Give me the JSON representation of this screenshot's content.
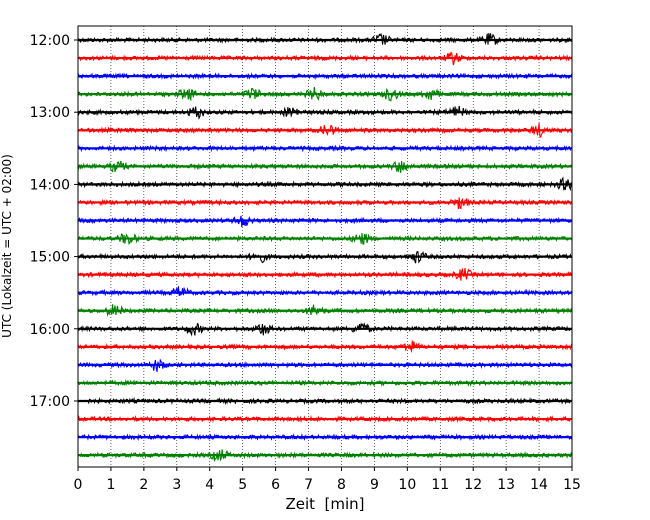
{
  "chart_data": {
    "type": "line",
    "title": "",
    "xlabel": "Zeit  [min]",
    "ylabel": "UTC (Lokalzeit = UTC + 02:00)",
    "xlim": [
      0,
      15
    ],
    "x_ticks": [
      "0",
      "1",
      "2",
      "3",
      "4",
      "5",
      "6",
      "7",
      "8",
      "9",
      "10",
      "11",
      "12",
      "13",
      "14",
      "15"
    ],
    "y_ticks": [
      "12:00",
      "13:00",
      "14:00",
      "15:00",
      "16:00",
      "17:00"
    ],
    "grid": "vertical dotted",
    "trace_interval_min": 15,
    "trace_colors": [
      "#000000",
      "#ff0000",
      "#0000ff",
      "#008000"
    ],
    "traces": [
      {
        "start": "12:00",
        "color": "#000000",
        "events": [
          9.2,
          12.5
        ]
      },
      {
        "start": "12:15",
        "color": "#ff0000",
        "events": [
          11.4
        ]
      },
      {
        "start": "12:30",
        "color": "#0000ff",
        "events": []
      },
      {
        "start": "12:45",
        "color": "#008000",
        "events": [
          3.3,
          5.3,
          7.2,
          9.5,
          10.7
        ]
      },
      {
        "start": "13:00",
        "color": "#000000",
        "events": [
          3.6,
          6.5,
          11.5
        ]
      },
      {
        "start": "13:15",
        "color": "#ff0000",
        "events": [
          7.6,
          14.0
        ]
      },
      {
        "start": "13:30",
        "color": "#0000ff",
        "events": []
      },
      {
        "start": "13:45",
        "color": "#008000",
        "events": [
          1.2,
          9.8
        ]
      },
      {
        "start": "14:00",
        "color": "#000000",
        "events": [
          14.8
        ]
      },
      {
        "start": "14:15",
        "color": "#ff0000",
        "events": [
          11.6
        ]
      },
      {
        "start": "14:30",
        "color": "#0000ff",
        "events": [
          5.0
        ]
      },
      {
        "start": "14:45",
        "color": "#008000",
        "events": [
          1.5,
          8.6
        ]
      },
      {
        "start": "15:00",
        "color": "#000000",
        "events": [
          5.5,
          10.3
        ]
      },
      {
        "start": "15:15",
        "color": "#ff0000",
        "events": [
          11.7
        ]
      },
      {
        "start": "15:30",
        "color": "#0000ff",
        "events": [
          3.1
        ]
      },
      {
        "start": "15:45",
        "color": "#008000",
        "events": [
          1.1,
          7.2
        ]
      },
      {
        "start": "16:00",
        "color": "#000000",
        "events": [
          3.5,
          5.6,
          8.6
        ]
      },
      {
        "start": "16:15",
        "color": "#ff0000",
        "events": [
          10.1
        ]
      },
      {
        "start": "16:30",
        "color": "#0000ff",
        "events": [
          2.4
        ]
      },
      {
        "start": "16:45",
        "color": "#008000",
        "events": []
      },
      {
        "start": "17:00",
        "color": "#000000",
        "events": []
      },
      {
        "start": "17:15",
        "color": "#ff0000",
        "events": []
      },
      {
        "start": "17:30",
        "color": "#0000ff",
        "events": []
      },
      {
        "start": "17:45",
        "color": "#008000",
        "events": [
          4.3
        ]
      }
    ]
  }
}
